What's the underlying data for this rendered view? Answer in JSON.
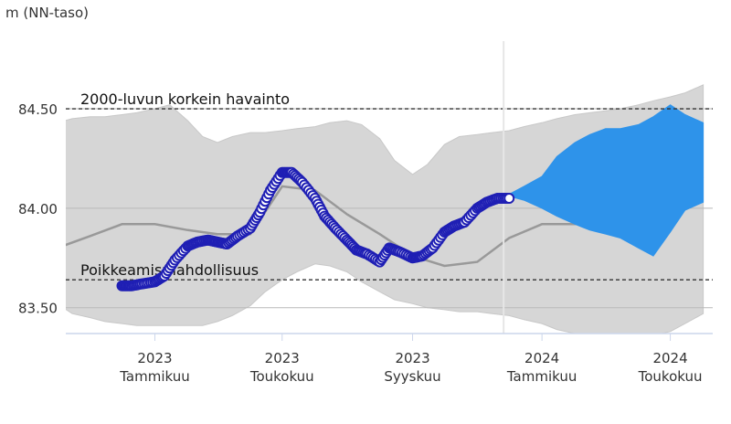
{
  "chart_data": {
    "type": "area",
    "ylabel": "m (NN-taso)",
    "ylim": [
      83.37,
      84.84
    ],
    "y_ticks": [
      {
        "value": 84.5,
        "label": "84.50"
      },
      {
        "value": 84.0,
        "label": "84.00"
      },
      {
        "value": 83.5,
        "label": "83.50"
      }
    ],
    "x_ticks": [
      {
        "year": "2023",
        "month": "Tammikuu",
        "x": "2023-01"
      },
      {
        "year": "2023",
        "month": "Toukokuu",
        "x": "2023-05"
      },
      {
        "year": "2023",
        "month": "Syyskuu",
        "x": "2023-09"
      },
      {
        "year": "2024",
        "month": "Tammikuu",
        "x": "2024-01"
      },
      {
        "year": "2024",
        "month": "Toukokuu",
        "x": "2024-05"
      }
    ],
    "reference_lines": [
      {
        "label": "2000-luvun korkein havainto",
        "value": 84.5
      },
      {
        "label": "Poikkeamismahdollisuus",
        "value": 83.64
      }
    ],
    "colors": {
      "range_band": "#d6d6d6",
      "mean_line": "#999999",
      "observed": "#1f1fb4",
      "forecast": "#2e93ea",
      "reference": "#333333"
    },
    "today_x": "2023-12-01",
    "series": [
      {
        "kind": "band",
        "x": [
          "2022-10-01",
          "2022-10-15",
          "2022-11-01",
          "2022-11-15",
          "2022-12-01",
          "2022-12-15",
          "2023-01-01",
          "2023-01-15",
          "2023-02-01",
          "2023-02-15",
          "2023-03-01",
          "2023-03-15",
          "2023-04-01",
          "2023-04-15",
          "2023-05-01",
          "2023-05-15",
          "2023-06-01",
          "2023-06-15",
          "2023-07-01",
          "2023-07-15",
          "2023-08-01",
          "2023-08-15",
          "2023-09-01",
          "2023-09-15",
          "2023-10-01",
          "2023-10-15",
          "2023-11-01",
          "2023-11-15",
          "2023-12-01",
          "2023-12-15",
          "2024-01-01",
          "2024-01-15",
          "2024-02-01",
          "2024-02-15",
          "2024-03-01",
          "2024-03-15",
          "2024-04-01",
          "2024-04-15",
          "2024-05-01",
          "2024-05-15",
          "2024-06-01"
        ],
        "low": [
          83.52,
          83.47,
          83.45,
          83.43,
          83.42,
          83.41,
          83.41,
          83.41,
          83.41,
          83.41,
          83.43,
          83.46,
          83.51,
          83.58,
          83.64,
          83.68,
          83.72,
          83.71,
          83.68,
          83.63,
          83.58,
          83.54,
          83.52,
          83.5,
          83.49,
          83.48,
          83.48,
          83.47,
          83.46,
          83.44,
          83.42,
          83.39,
          83.37,
          83.36,
          83.35,
          83.35,
          83.35,
          83.36,
          83.38,
          83.42,
          83.47
        ],
        "high": [
          84.43,
          84.45,
          84.46,
          84.46,
          84.47,
          84.48,
          84.5,
          84.52,
          84.44,
          84.36,
          84.33,
          84.36,
          84.38,
          84.38,
          84.39,
          84.4,
          84.41,
          84.43,
          84.44,
          84.42,
          84.35,
          84.24,
          84.17,
          84.22,
          84.32,
          84.36,
          84.37,
          84.38,
          84.39,
          84.41,
          84.43,
          84.45,
          84.47,
          84.48,
          84.49,
          84.5,
          84.52,
          84.54,
          84.56,
          84.58,
          84.62
        ]
      },
      {
        "kind": "line",
        "x": [
          "2022-10-01",
          "2022-11-01",
          "2022-12-01",
          "2023-01-01",
          "2023-02-01",
          "2023-03-01",
          "2023-04-01",
          "2023-05-01",
          "2023-06-01",
          "2023-07-01",
          "2023-08-01",
          "2023-09-01",
          "2023-10-01",
          "2023-11-01",
          "2023-12-01",
          "2024-01-01",
          "2024-02-01",
          "2024-03-01",
          "2024-04-01",
          "2024-05-01",
          "2024-06-01"
        ],
        "values": [
          83.8,
          83.86,
          83.92,
          83.92,
          83.89,
          83.87,
          83.87,
          84.11,
          84.09,
          83.97,
          83.87,
          83.76,
          83.71,
          83.73,
          83.85,
          83.92,
          83.92,
          83.92,
          83.89,
          84.08,
          84.16
        ]
      },
      {
        "kind": "points",
        "x": [
          "2022-12-01",
          "2022-12-10",
          "2022-12-20",
          "2023-01-01",
          "2023-01-10",
          "2023-01-20",
          "2023-02-01",
          "2023-02-10",
          "2023-02-20",
          "2023-03-01",
          "2023-03-10",
          "2023-03-20",
          "2023-04-01",
          "2023-04-10",
          "2023-04-20",
          "2023-05-01",
          "2023-05-10",
          "2023-05-20",
          "2023-06-01",
          "2023-06-10",
          "2023-06-20",
          "2023-07-01",
          "2023-07-10",
          "2023-07-20",
          "2023-08-01",
          "2023-08-10",
          "2023-08-20",
          "2023-09-01",
          "2023-09-10",
          "2023-09-20",
          "2023-10-01",
          "2023-10-10",
          "2023-10-20",
          "2023-11-01",
          "2023-11-10",
          "2023-11-20",
          "2023-12-01"
        ],
        "values": [
          83.61,
          83.61,
          83.62,
          83.63,
          83.66,
          83.74,
          83.81,
          83.83,
          83.84,
          83.83,
          83.82,
          83.86,
          83.9,
          83.98,
          84.09,
          84.18,
          84.18,
          84.13,
          84.05,
          83.96,
          83.9,
          83.84,
          83.79,
          83.77,
          83.73,
          83.8,
          83.78,
          83.75,
          83.76,
          83.8,
          83.88,
          83.91,
          83.93,
          84.0,
          84.03,
          84.05,
          84.05
        ]
      },
      {
        "kind": "forecast_band",
        "x": [
          "2023-12-01",
          "2023-12-15",
          "2024-01-01",
          "2024-01-15",
          "2024-02-01",
          "2024-02-15",
          "2024-03-01",
          "2024-03-15",
          "2024-04-01",
          "2024-04-15",
          "2024-05-01",
          "2024-05-15",
          "2024-06-01"
        ],
        "low": [
          84.06,
          84.04,
          84.0,
          83.96,
          83.92,
          83.89,
          83.87,
          83.85,
          83.8,
          83.76,
          83.88,
          83.99,
          84.03
        ],
        "high": [
          84.07,
          84.11,
          84.16,
          84.26,
          84.33,
          84.37,
          84.4,
          84.4,
          84.42,
          84.46,
          84.52,
          84.47,
          84.43
        ]
      }
    ]
  }
}
